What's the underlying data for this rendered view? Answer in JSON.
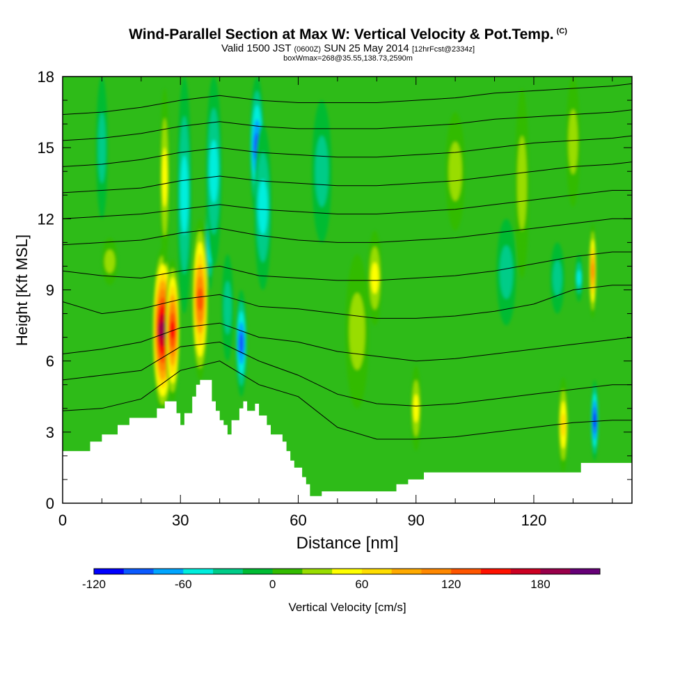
{
  "header": {
    "title": "Wind-Parallel Section at Max W: Vertical Velocity & Pot.Temp.",
    "copyright": "(C)",
    "valid_prefix": "Valid 1500 JST",
    "valid_utc": "(0600Z)",
    "valid_date": "SUN 25 May 2014",
    "forecast": "[12hrFcst@2334z]",
    "box_info": "boxWmax=268@35.55,138.73,2590m"
  },
  "chart_data": {
    "type": "heatmap",
    "title": "Wind-Parallel Section at Max W: Vertical Velocity & Pot.Temp.",
    "xlabel": "Distance [nm]",
    "ylabel": "Height [Kft MSL]",
    "xlim": [
      0,
      145
    ],
    "ylim": [
      0,
      18
    ],
    "x_ticks": [
      0,
      30,
      60,
      90,
      120
    ],
    "x_tick_labels": [
      "0",
      "30",
      "60",
      "90",
      "120"
    ],
    "y_ticks": [
      0,
      3,
      6,
      9,
      12,
      15,
      18
    ],
    "y_tick_labels": [
      "0",
      "3",
      "6",
      "9",
      "12",
      "15",
      "18"
    ],
    "colorbar": {
      "label": "Vertical Velocity [cm/s]",
      "levels": [
        -120,
        -100,
        -80,
        -60,
        -40,
        -20,
        0,
        20,
        40,
        60,
        80,
        100,
        120,
        140,
        160,
        180,
        200,
        220
      ],
      "tick_values": [
        -120,
        -60,
        0,
        60,
        120,
        180
      ],
      "tick_labels": [
        "-120",
        "-60",
        "0",
        "60",
        "120",
        "180"
      ],
      "colors": [
        "#0000ff",
        "#0a5aff",
        "#00a5ff",
        "#00eedd",
        "#00cc88",
        "#00bb33",
        "#33bb00",
        "#99dd00",
        "#ffff00",
        "#ffdd00",
        "#ffaa00",
        "#ff8800",
        "#ff5500",
        "#ff1100",
        "#cc0022",
        "#99004a",
        "#660077"
      ]
    },
    "background_fill": "#2ebb18",
    "terrain": {
      "x": [
        0,
        7,
        7,
        10,
        10,
        14,
        14,
        17,
        17,
        24,
        24,
        26,
        26,
        29,
        29,
        30,
        30,
        31,
        31,
        33,
        33,
        34,
        34,
        35,
        35,
        38,
        38,
        39,
        39,
        40,
        40,
        41,
        41,
        42,
        42,
        43,
        43,
        45,
        45,
        46,
        46,
        47,
        47,
        49,
        49,
        50,
        50,
        52,
        52,
        53,
        53,
        56,
        56,
        57,
        57,
        58,
        58,
        59,
        59,
        61,
        61,
        62,
        62,
        63,
        63,
        66,
        66,
        85,
        85,
        88,
        88,
        92,
        92,
        132,
        132,
        145
      ],
      "y": [
        2.2,
        2.2,
        2.6,
        2.6,
        2.9,
        2.9,
        3.3,
        3.3,
        3.6,
        3.6,
        4.0,
        4.0,
        4.3,
        4.3,
        3.8,
        3.8,
        3.3,
        3.3,
        3.8,
        3.8,
        4.5,
        4.5,
        5.0,
        5.0,
        5.2,
        5.2,
        4.3,
        4.3,
        3.9,
        3.9,
        3.5,
        3.5,
        3.3,
        3.3,
        2.9,
        2.9,
        3.5,
        3.5,
        4.0,
        4.0,
        4.3,
        4.3,
        3.9,
        3.9,
        4.2,
        4.2,
        3.7,
        3.7,
        3.3,
        3.3,
        2.9,
        2.9,
        2.6,
        2.6,
        2.2,
        2.2,
        1.8,
        1.8,
        1.5,
        1.5,
        1.1,
        1.1,
        0.8,
        0.8,
        0.3,
        0.3,
        0.5,
        0.5,
        0.8,
        0.8,
        1.0,
        1.0,
        1.3,
        1.3,
        1.7,
        1.7
      ]
    },
    "velocity_features": [
      {
        "x": 25.5,
        "y0": 3.8,
        "y1": 10.8,
        "w": 2.6,
        "value": 200
      },
      {
        "x": 28.0,
        "y0": 4.3,
        "y1": 10.3,
        "w": 1.8,
        "value": 150
      },
      {
        "x": 35.0,
        "y0": 5.2,
        "y1": 12.0,
        "w": 2.0,
        "value": 140
      },
      {
        "x": 26.0,
        "y0": 10.0,
        "y1": 17.5,
        "w": 1.2,
        "value": 50
      },
      {
        "x": 31.0,
        "y0": 8.0,
        "y1": 18.0,
        "w": 1.8,
        "value": -55
      },
      {
        "x": 37.5,
        "y0": 9.0,
        "y1": 14.5,
        "w": 1.0,
        "value": -100
      },
      {
        "x": 38.5,
        "y0": 10.0,
        "y1": 18.0,
        "w": 2.0,
        "value": -50
      },
      {
        "x": 45.5,
        "y0": 4.5,
        "y1": 9.0,
        "w": 1.4,
        "value": -90
      },
      {
        "x": 49.5,
        "y0": 12.0,
        "y1": 18.0,
        "w": 1.8,
        "value": -100
      },
      {
        "x": 51.0,
        "y0": 9.0,
        "y1": 16.0,
        "w": 2.2,
        "value": -50
      },
      {
        "x": 79.5,
        "y0": 7.5,
        "y1": 11.5,
        "w": 1.8,
        "value": 60
      },
      {
        "x": 90.0,
        "y0": 2.2,
        "y1": 5.8,
        "w": 1.3,
        "value": 55
      },
      {
        "x": 127.5,
        "y0": 1.3,
        "y1": 5.3,
        "w": 1.2,
        "value": 70
      },
      {
        "x": 135.5,
        "y0": 1.8,
        "y1": 5.2,
        "w": 0.9,
        "value": -110
      },
      {
        "x": 135.0,
        "y0": 7.8,
        "y1": 11.8,
        "w": 0.9,
        "value": 110
      },
      {
        "x": 12.0,
        "y0": 9.2,
        "y1": 11.2,
        "w": 2.0,
        "value": 35
      },
      {
        "x": 75.0,
        "y0": 4.0,
        "y1": 10.5,
        "w": 3.0,
        "value": 30
      },
      {
        "x": 66.0,
        "y0": 11.0,
        "y1": 17.0,
        "w": 2.5,
        "value": -30
      },
      {
        "x": 100.0,
        "y0": 11.5,
        "y1": 16.5,
        "w": 2.5,
        "value": 30
      },
      {
        "x": 113.0,
        "y0": 7.5,
        "y1": 12.0,
        "w": 2.5,
        "value": -30
      },
      {
        "x": 117.0,
        "y0": 9.5,
        "y1": 17.5,
        "w": 1.8,
        "value": 30
      },
      {
        "x": 126.0,
        "y0": 8.0,
        "y1": 11.0,
        "w": 1.8,
        "value": -30
      },
      {
        "x": 130.0,
        "y0": 12.5,
        "y1": 18.0,
        "w": 1.8,
        "value": 40
      },
      {
        "x": 131.5,
        "y0": 8.5,
        "y1": 10.5,
        "w": 1.0,
        "value": -50
      },
      {
        "x": 10.0,
        "y0": 12.0,
        "y1": 18.0,
        "w": 1.5,
        "value": -30
      },
      {
        "x": 42.0,
        "y0": 6.0,
        "y1": 10.5,
        "w": 1.5,
        "value": -30
      }
    ],
    "theta_contours": [
      {
        "label": "",
        "x": [
          0,
          10,
          20,
          30,
          40,
          50,
          60,
          70,
          80,
          90,
          100,
          110,
          120,
          130,
          140,
          145
        ],
        "y": [
          3.9,
          4.0,
          4.4,
          5.6,
          6.0,
          5.0,
          4.5,
          3.2,
          2.7,
          2.7,
          2.8,
          3.0,
          3.2,
          3.4,
          3.5,
          3.5
        ]
      },
      {
        "label": "",
        "x": [
          0,
          10,
          20,
          30,
          40,
          50,
          60,
          70,
          80,
          90,
          100,
          110,
          120,
          130,
          140,
          145
        ],
        "y": [
          5.2,
          5.4,
          5.6,
          6.6,
          6.8,
          6.0,
          5.4,
          4.6,
          4.2,
          4.1,
          4.2,
          4.4,
          4.6,
          4.8,
          5.0,
          5.0
        ]
      },
      {
        "label": "",
        "x": [
          0,
          10,
          20,
          30,
          40,
          50,
          60,
          70,
          80,
          90,
          100,
          110,
          120,
          130,
          140,
          145
        ],
        "y": [
          6.3,
          6.5,
          6.8,
          7.4,
          7.6,
          7.0,
          6.8,
          6.4,
          6.2,
          6.0,
          6.1,
          6.3,
          6.5,
          6.7,
          6.9,
          7.0
        ]
      },
      {
        "label": "",
        "x": [
          0,
          10,
          20,
          30,
          40,
          50,
          60,
          70,
          80,
          90,
          100,
          110,
          120,
          130,
          140,
          145
        ],
        "y": [
          8.5,
          8.0,
          8.2,
          8.6,
          8.8,
          8.3,
          8.2,
          8.0,
          7.8,
          7.8,
          7.9,
          8.1,
          8.4,
          9.0,
          9.2,
          9.2
        ]
      },
      {
        "label": "",
        "x": [
          0,
          10,
          20,
          30,
          40,
          50,
          60,
          70,
          80,
          90,
          100,
          110,
          120,
          130,
          140,
          145
        ],
        "y": [
          9.8,
          9.6,
          9.5,
          9.8,
          10.0,
          9.6,
          9.5,
          9.4,
          9.4,
          9.5,
          9.6,
          9.8,
          10.1,
          10.4,
          10.6,
          10.6
        ]
      },
      {
        "label": "",
        "x": [
          0,
          10,
          20,
          30,
          40,
          50,
          60,
          70,
          80,
          90,
          100,
          110,
          120,
          130,
          140,
          145
        ],
        "y": [
          10.9,
          11.0,
          11.1,
          11.4,
          11.6,
          11.3,
          11.1,
          11.0,
          11.0,
          11.1,
          11.2,
          11.4,
          11.6,
          11.8,
          12.0,
          12.0
        ]
      },
      {
        "label": "",
        "x": [
          0,
          10,
          20,
          30,
          40,
          50,
          60,
          70,
          80,
          90,
          100,
          110,
          120,
          130,
          140,
          145
        ],
        "y": [
          12.0,
          12.1,
          12.2,
          12.4,
          12.6,
          12.4,
          12.3,
          12.2,
          12.2,
          12.3,
          12.4,
          12.6,
          12.8,
          13.0,
          13.2,
          13.2
        ]
      },
      {
        "label": "",
        "x": [
          0,
          10,
          20,
          30,
          40,
          50,
          60,
          70,
          80,
          90,
          100,
          110,
          120,
          130,
          140,
          145
        ],
        "y": [
          13.1,
          13.2,
          13.3,
          13.6,
          13.8,
          13.6,
          13.5,
          13.4,
          13.4,
          13.5,
          13.6,
          13.8,
          14.0,
          14.2,
          14.3,
          14.4
        ]
      },
      {
        "label": "",
        "x": [
          0,
          10,
          20,
          30,
          40,
          50,
          60,
          70,
          80,
          90,
          100,
          110,
          120,
          130,
          140,
          145
        ],
        "y": [
          14.2,
          14.3,
          14.5,
          14.8,
          15.0,
          14.8,
          14.7,
          14.6,
          14.6,
          14.7,
          14.8,
          15.0,
          15.2,
          15.3,
          15.4,
          15.5
        ]
      },
      {
        "label": "",
        "x": [
          0,
          10,
          20,
          30,
          40,
          50,
          60,
          70,
          80,
          90,
          100,
          110,
          120,
          130,
          140,
          145
        ],
        "y": [
          15.3,
          15.4,
          15.6,
          15.9,
          16.1,
          15.9,
          15.8,
          15.8,
          15.8,
          15.9,
          16.0,
          16.2,
          16.3,
          16.4,
          16.5,
          16.6
        ]
      },
      {
        "label": "",
        "x": [
          0,
          10,
          20,
          30,
          40,
          50,
          60,
          70,
          80,
          90,
          100,
          110,
          120,
          130,
          140,
          145
        ],
        "y": [
          16.4,
          16.5,
          16.7,
          17.0,
          17.2,
          17.0,
          16.9,
          16.9,
          16.9,
          17.0,
          17.1,
          17.3,
          17.4,
          17.5,
          17.6,
          17.7
        ]
      }
    ]
  }
}
